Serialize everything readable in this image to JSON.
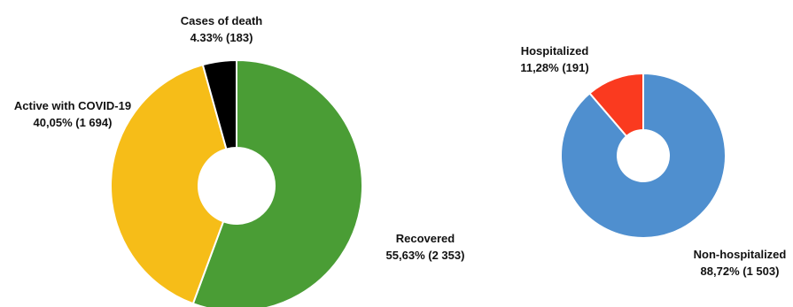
{
  "chart_data": [
    {
      "type": "pie",
      "categories": [
        "Recovered",
        "Active with COVID-19",
        "Cases of death"
      ],
      "values": [
        2353,
        1694,
        183
      ],
      "percent_labels": [
        "55,63% (2 353)",
        "40,05% (1 694)",
        "4.33% (183)"
      ],
      "colors": [
        "#4a9d35",
        "#f6bd18",
        "#000000"
      ],
      "style": "donut",
      "start": "12 o'clock",
      "direction": "clockwise"
    },
    {
      "type": "pie",
      "categories": [
        "Non-hospitalized",
        "Hospitalized"
      ],
      "values": [
        1503,
        191
      ],
      "percent_labels": [
        "88,72% (1 503)",
        "11,28% (191)"
      ],
      "colors": [
        "#4f8fcf",
        "#fa3a1f"
      ],
      "style": "donut",
      "start": "12 o'clock",
      "direction": "clockwise"
    }
  ]
}
